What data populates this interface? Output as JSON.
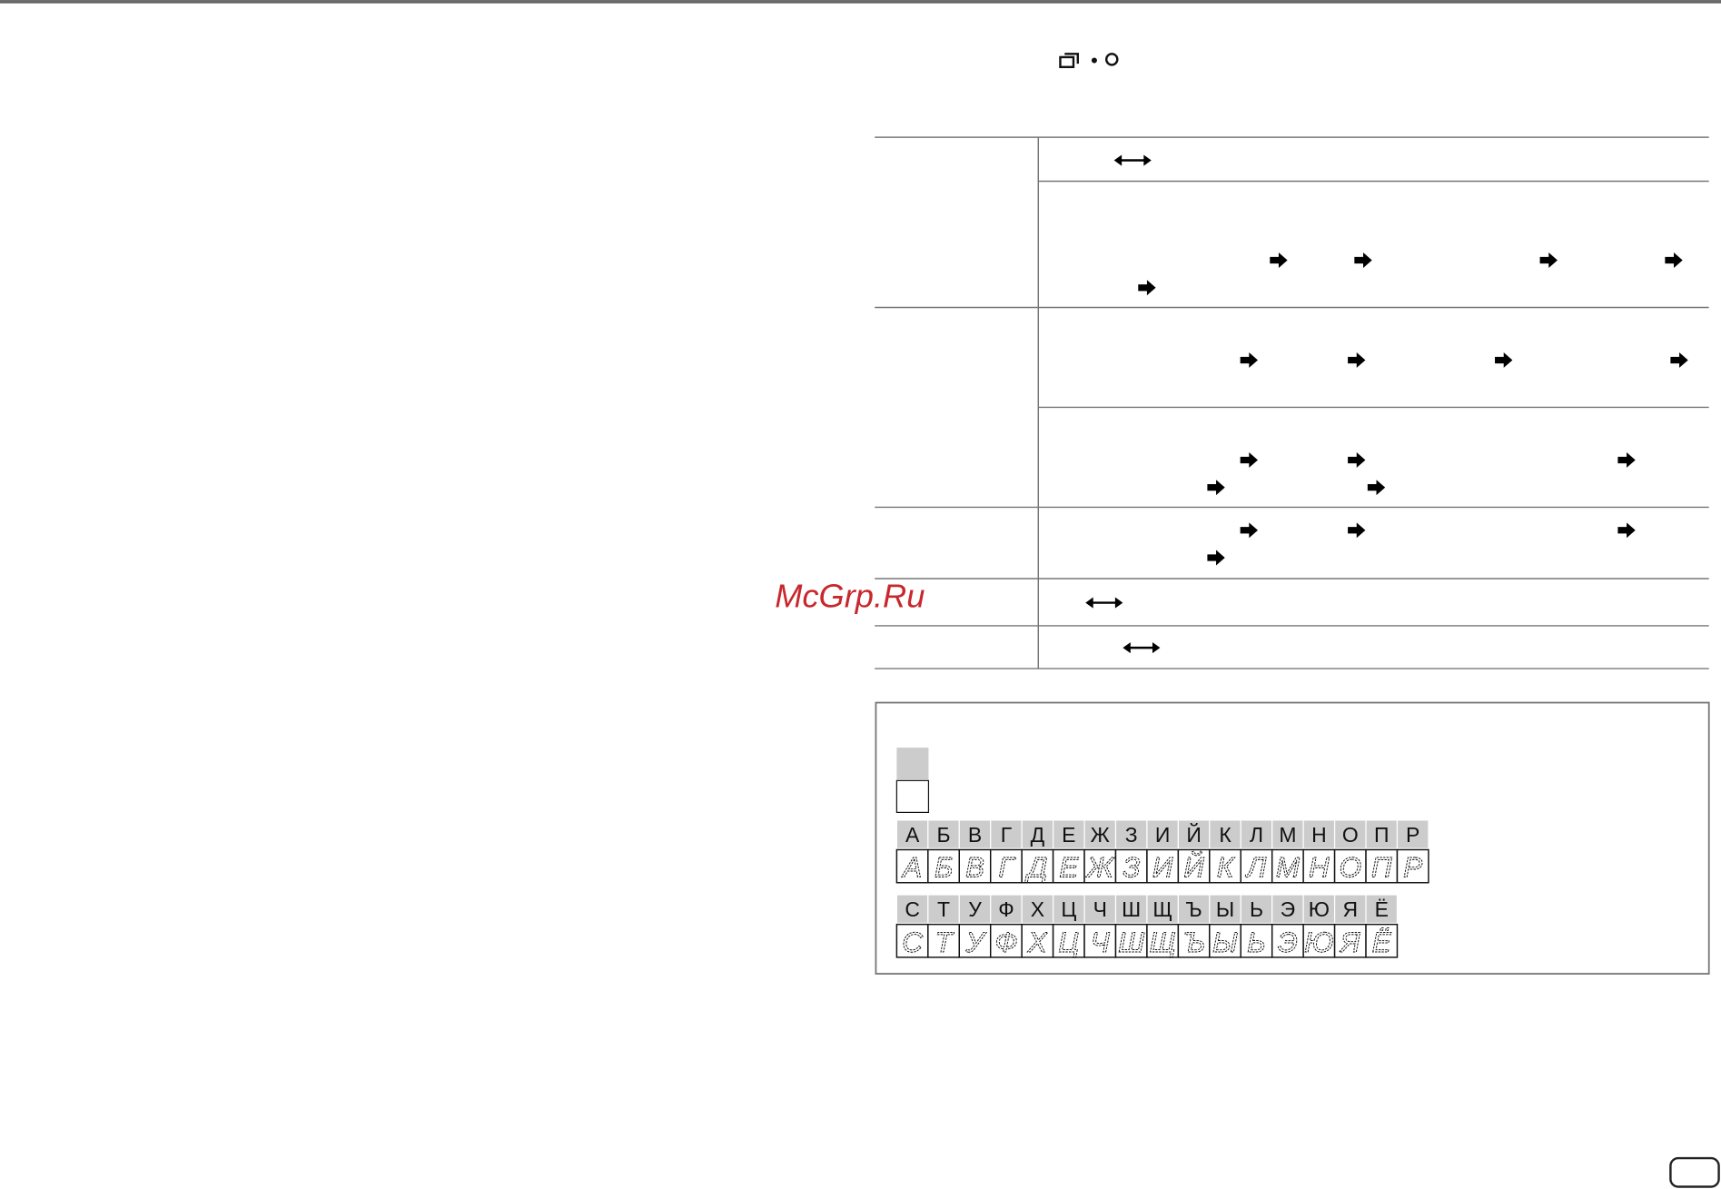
{
  "watermark": "McGrp.Ru",
  "charset": {
    "rows": [
      [
        "А",
        "Б",
        "В",
        "Г",
        "Д",
        "Е",
        "Ж",
        "З",
        "И",
        "Й",
        "К",
        "Л",
        "М",
        "Н",
        "О",
        "П",
        "Р"
      ],
      [
        "С",
        "Т",
        "У",
        "Ф",
        "Х",
        "Ц",
        "Ч",
        "Ш",
        "Щ",
        "Ъ",
        "Ы",
        "Ь",
        "Э",
        "Ю",
        "Я",
        "Ё"
      ]
    ]
  }
}
